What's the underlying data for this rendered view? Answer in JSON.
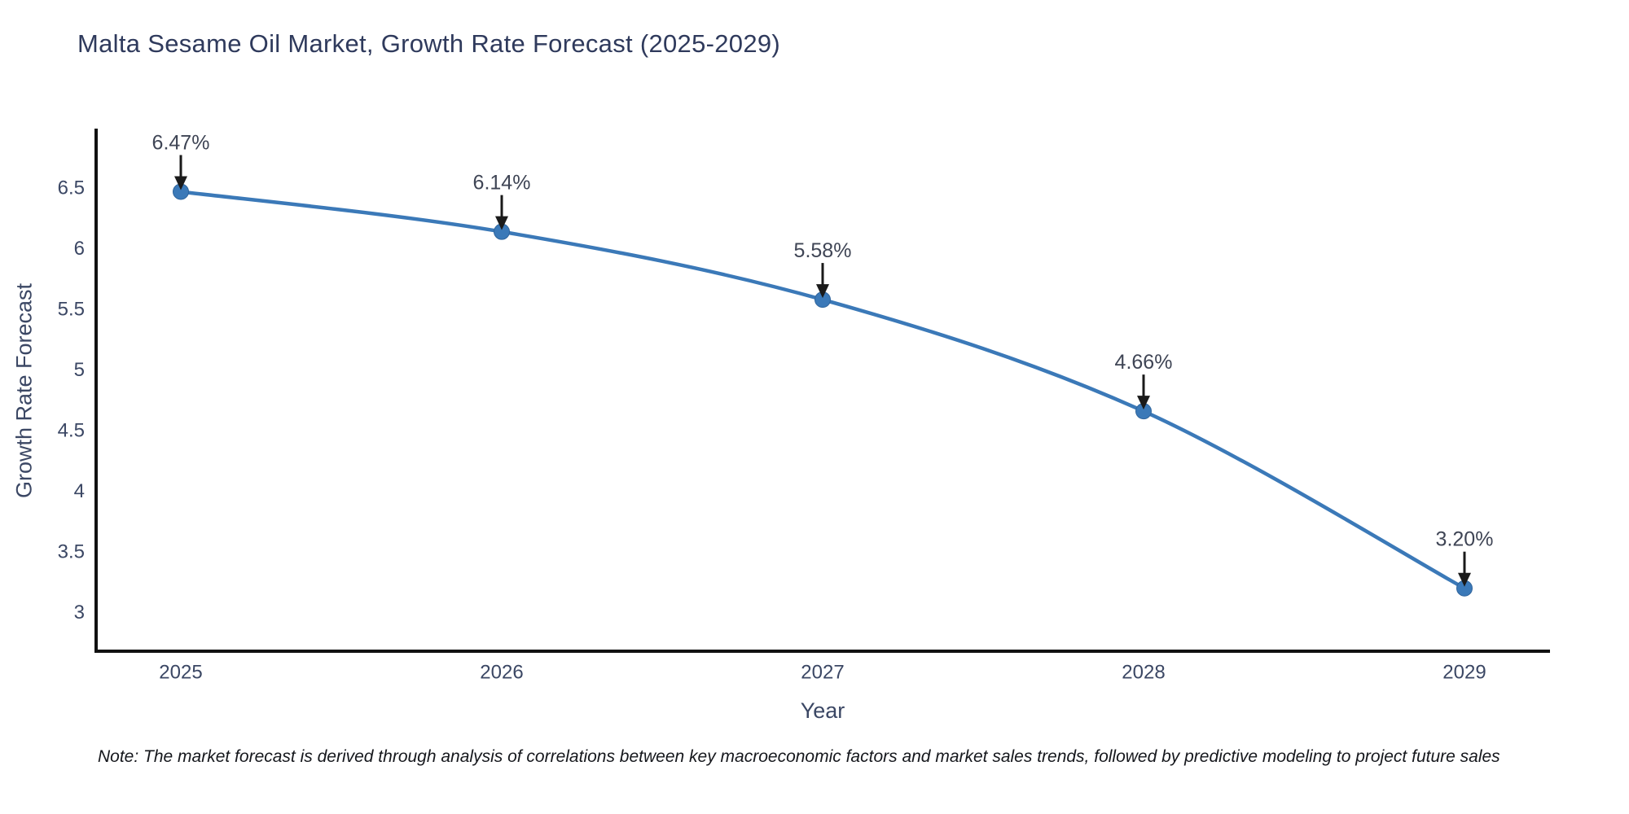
{
  "chart_data": {
    "type": "line",
    "title": "Malta Sesame Oil Market, Growth Rate Forecast (2025-2029)",
    "xlabel": "Year",
    "ylabel": "Growth Rate Forecast",
    "x": [
      2025,
      2026,
      2027,
      2028,
      2029
    ],
    "series": [
      {
        "name": "Growth Rate Forecast",
        "values": [
          6.47,
          6.14,
          5.58,
          4.66,
          3.2
        ]
      }
    ],
    "point_labels": [
      "6.47%",
      "6.14%",
      "5.58%",
      "4.66%",
      "3.20%"
    ],
    "xticks": [
      "2025",
      "2026",
      "2027",
      "2028",
      "2029"
    ],
    "yticks": [
      3,
      3.5,
      4,
      4.5,
      5,
      5.5,
      6,
      6.5
    ],
    "ytick_labels": [
      "3",
      "3.5",
      "4",
      "4.5",
      "5",
      "5.5",
      "6",
      "6.5"
    ],
    "ylim": [
      2.7,
      7.0
    ],
    "grid": false,
    "legend": "none",
    "line_shape": "spline",
    "colors": {
      "line": "#3b79b8",
      "marker": "#3b79b8",
      "marker_edge": "#2f649c",
      "arrow": "#1a1a1a",
      "axis_line": "#111111",
      "title_text": "#2f3a5c",
      "tick_text": "#3b4764",
      "label_text": "#3f4555",
      "note_text": "#15171c"
    }
  },
  "note": "Note: The market forecast is derived through analysis of correlations between key macroeconomic factors and market sales trends, followed by predictive modeling to project future sales"
}
